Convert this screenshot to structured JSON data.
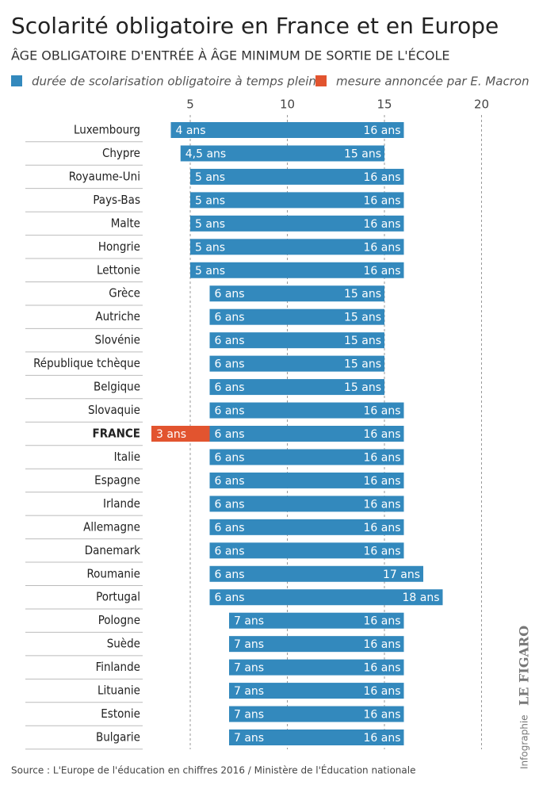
{
  "chart_data": {
    "type": "range-bar",
    "title": "Scolarité obligatoire en France et en Europe",
    "subtitle": "ÂGE OBLIGATOIRE D'ENTRÉE À ÂGE MINIMUM DE SORTIE DE L'ÉCOLE",
    "categories": [
      "Luxembourg",
      "Chypre",
      "Royaume-Uni",
      "Pays-Bas",
      "Malte",
      "Hongrie",
      "Lettonie",
      "Grèce",
      "Autriche",
      "Slovénie",
      "République tchèque",
      "Belgique",
      "Slovaquie",
      "FRANCE",
      "Italie",
      "Espagne",
      "Irlande",
      "Allemagne",
      "Danemark",
      "Roumanie",
      "Portugal",
      "Pologne",
      "Suède",
      "Finlande",
      "Lituanie",
      "Estonie",
      "Bulgarie"
    ],
    "highlight": "FRANCE",
    "series": [
      {
        "name": "durée de scolarisation obligatoire à temps plein",
        "color": "#3389bd",
        "low": [
          4,
          4.5,
          5,
          5,
          5,
          5,
          5,
          6,
          6,
          6,
          6,
          6,
          6,
          6,
          6,
          6,
          6,
          6,
          6,
          6,
          6,
          7,
          7,
          7,
          7,
          7,
          7
        ],
        "high": [
          16,
          15,
          16,
          16,
          16,
          16,
          16,
          15,
          15,
          15,
          15,
          15,
          16,
          16,
          16,
          16,
          16,
          16,
          16,
          17,
          18,
          16,
          16,
          16,
          16,
          16,
          16
        ],
        "low_labels": [
          "4 ans",
          "4,5 ans",
          "5 ans",
          "5 ans",
          "5 ans",
          "5 ans",
          "5 ans",
          "6 ans",
          "6 ans",
          "6 ans",
          "6 ans",
          "6 ans",
          "6 ans",
          "6 ans",
          "6 ans",
          "6 ans",
          "6 ans",
          "6 ans",
          "6 ans",
          "6 ans",
          "6 ans",
          "7 ans",
          "7 ans",
          "7 ans",
          "7 ans",
          "7 ans",
          "7 ans"
        ],
        "high_labels": [
          "16 ans",
          "15 ans",
          "16 ans",
          "16 ans",
          "16 ans",
          "16 ans",
          "16 ans",
          "15 ans",
          "15 ans",
          "15 ans",
          "15 ans",
          "15 ans",
          "16 ans",
          "16 ans",
          "16 ans",
          "16 ans",
          "16 ans",
          "16 ans",
          "16 ans",
          "17 ans",
          "18 ans",
          "16 ans",
          "16 ans",
          "16 ans",
          "16 ans",
          "16 ans",
          "16 ans"
        ]
      },
      {
        "name": "mesure annoncée par E. Macron",
        "color": "#e2542f",
        "low": [
          null,
          null,
          null,
          null,
          null,
          null,
          null,
          null,
          null,
          null,
          null,
          null,
          null,
          3,
          null,
          null,
          null,
          null,
          null,
          null,
          null,
          null,
          null,
          null,
          null,
          null,
          null
        ],
        "high": [
          null,
          null,
          null,
          null,
          null,
          null,
          null,
          null,
          null,
          null,
          null,
          null,
          null,
          6,
          null,
          null,
          null,
          null,
          null,
          null,
          null,
          null,
          null,
          null,
          null,
          null,
          null
        ],
        "low_labels": [
          null,
          null,
          null,
          null,
          null,
          null,
          null,
          null,
          null,
          null,
          null,
          null,
          null,
          "3 ans",
          null,
          null,
          null,
          null,
          null,
          null,
          null,
          null,
          null,
          null,
          null,
          null,
          null
        ]
      }
    ],
    "xlim": [
      0,
      22
    ],
    "xticks": [
      5,
      10,
      15,
      20
    ],
    "grid": true,
    "source": "Source : L'Europe de l'éducation en chiffres 2016 / Ministère de l'Éducation nationale",
    "credit": [
      "Infographie",
      "LE FIGARO"
    ]
  }
}
